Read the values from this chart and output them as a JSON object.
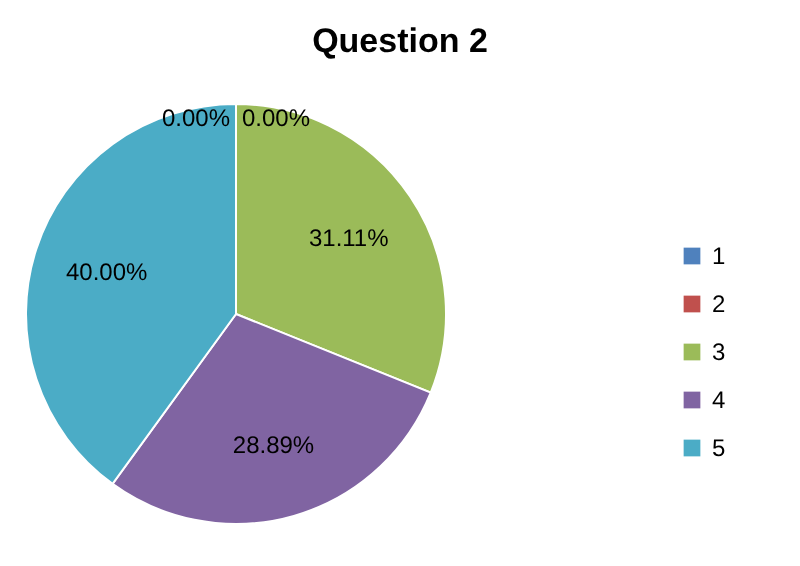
{
  "chart_data": {
    "type": "pie",
    "title": "Question 2",
    "categories": [
      "1",
      "2",
      "3",
      "4",
      "5"
    ],
    "values": [
      0,
      0,
      31.11,
      28.89,
      40
    ],
    "colors": [
      "#4f81bd",
      "#c0504d",
      "#9bbb59",
      "#8064a2",
      "#4bacc6"
    ],
    "value_labels": [
      "0.00%",
      "0.00%",
      "31.11%",
      "28.89%",
      "40.00%"
    ],
    "legend": "right"
  }
}
